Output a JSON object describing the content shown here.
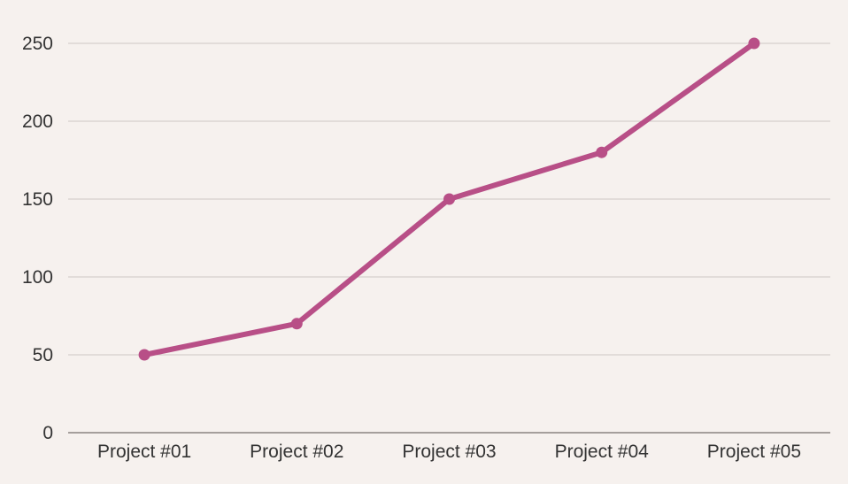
{
  "chart_data": {
    "type": "line",
    "categories": [
      "Project #01",
      "Project #02",
      "Project #03",
      "Project #04",
      "Project #05"
    ],
    "series": [
      {
        "values": [
          50,
          70,
          150,
          180,
          250
        ]
      }
    ],
    "ylim": [
      0,
      250
    ],
    "yticks": [
      "0",
      "50",
      "100",
      "150",
      "200",
      "250"
    ],
    "grid": true,
    "legend": "none"
  },
  "colors": {
    "background": "#f6f1ee",
    "line": "#b84f87",
    "grid": "#cfc6c4",
    "axis": "#8a8480",
    "text": "#333333"
  }
}
